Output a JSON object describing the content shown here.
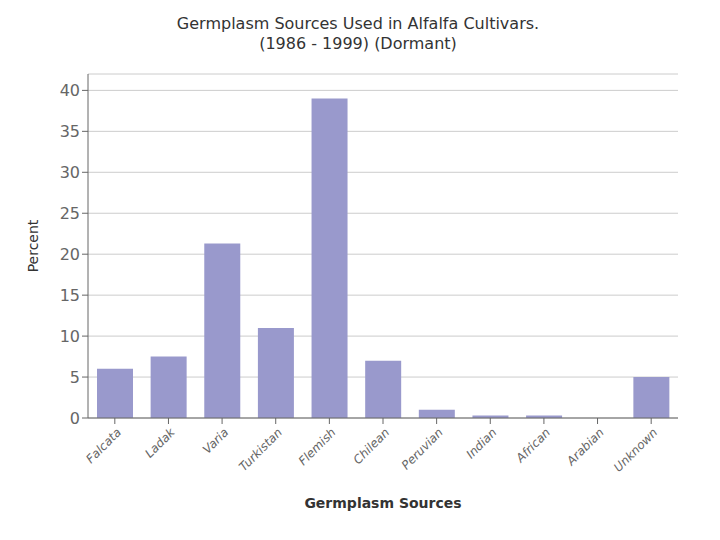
{
  "chart_data": {
    "type": "bar",
    "title": "Germplasm Sources Used in Alfalfa Cultivars.\n(1986 - 1999) (Dormant)",
    "xlabel": "Germplasm Sources",
    "ylabel": "Percent",
    "categories": [
      "Falcata",
      "Ladak",
      "Varia",
      "Turkistan",
      "Flemish",
      "Chilean",
      "Peruvian",
      "Indian",
      "African",
      "Arabian",
      "Unknown"
    ],
    "values": [
      6.0,
      7.5,
      21.3,
      11.0,
      39.0,
      7.0,
      1.0,
      0.3,
      0.3,
      0.0,
      5.0
    ],
    "color": "#9999cc",
    "ylim": [
      0,
      42
    ],
    "yticks": [
      0,
      5,
      10,
      15,
      20,
      25,
      30,
      35,
      40
    ],
    "grid": true
  }
}
